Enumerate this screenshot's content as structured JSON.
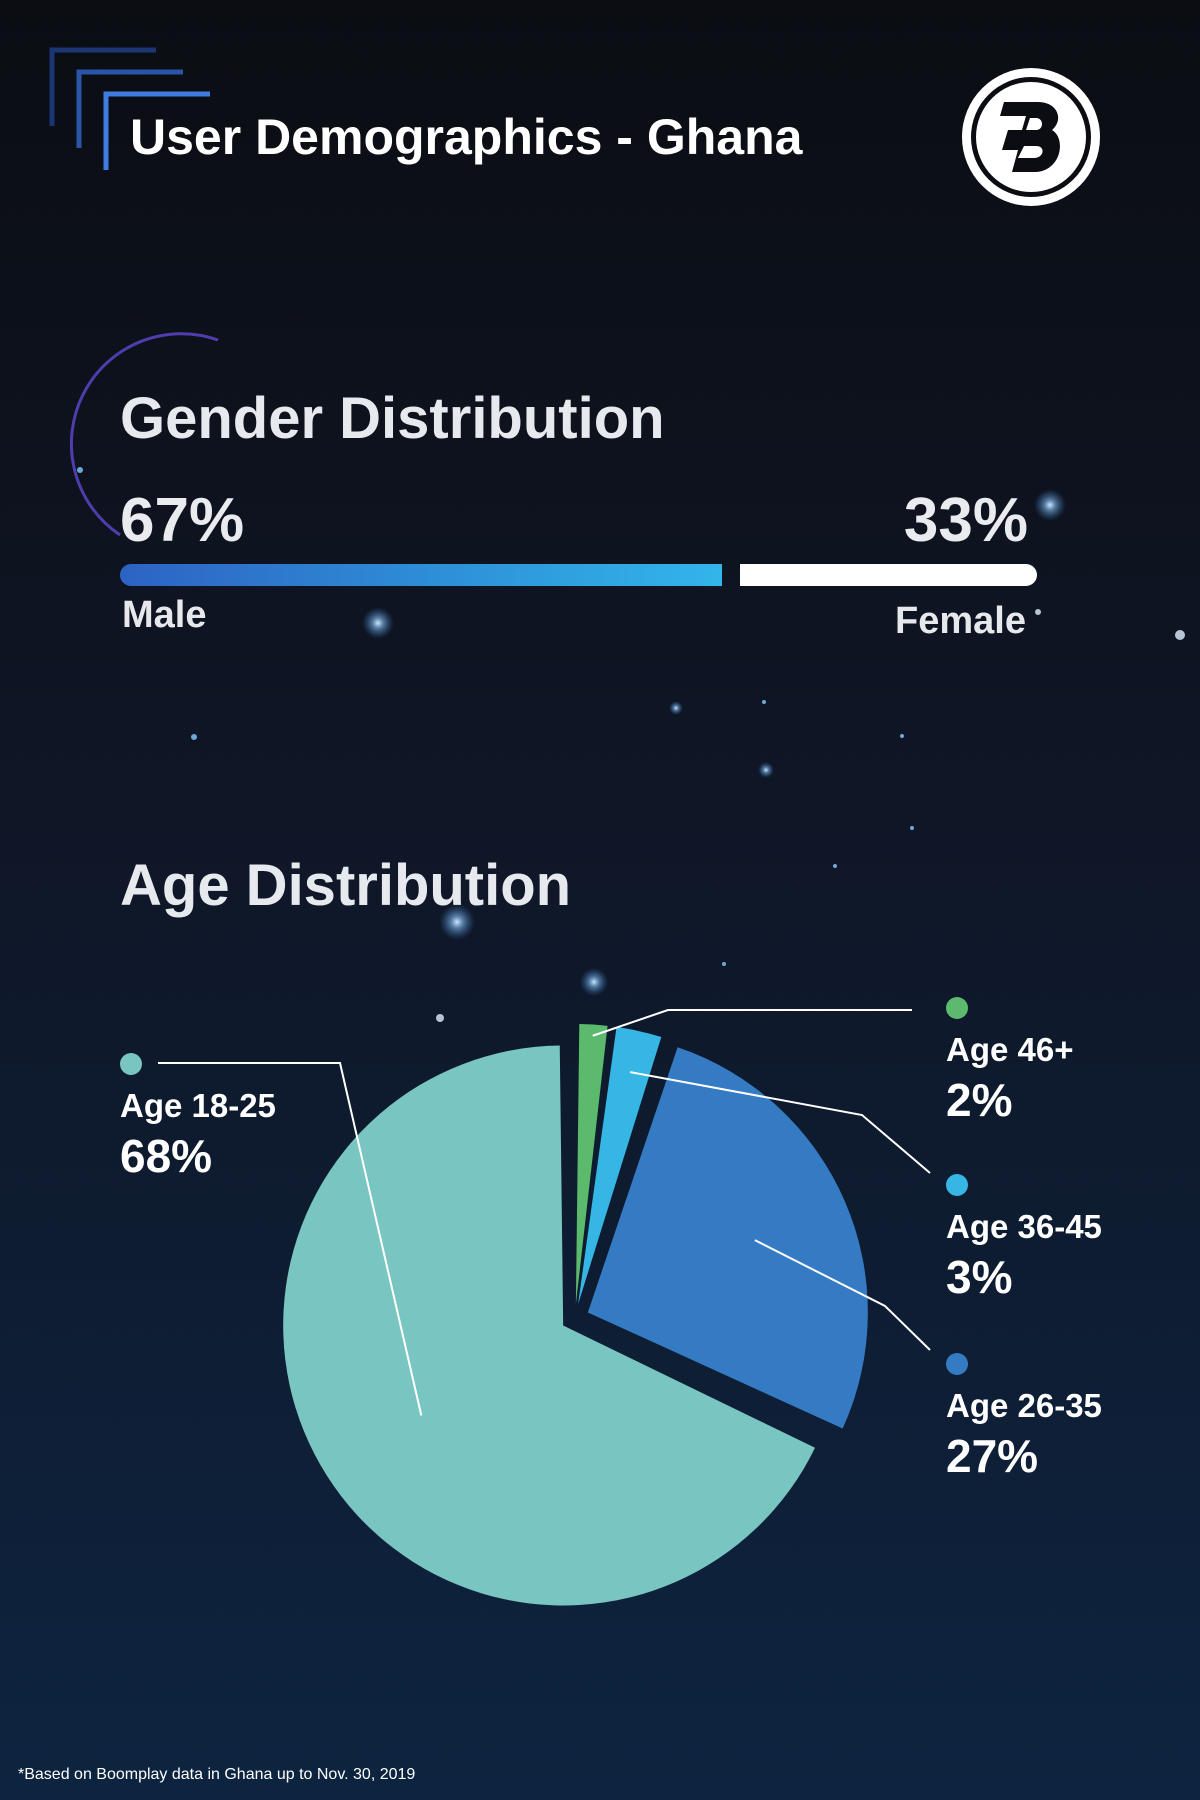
{
  "header": {
    "title": "User Demographics - Ghana"
  },
  "colors": {
    "male": "#2f8fdc",
    "female": "#ffffff",
    "age_18_25": "#78c5c1",
    "age_26_35": "#357bc4",
    "age_36_45": "#35b6e5",
    "age_46_plus": "#5cba6c"
  },
  "gender": {
    "title": "Gender Distribution",
    "male_pct": "67%",
    "male_label": "Male",
    "female_pct": "33%",
    "female_label": "Female"
  },
  "gender_chart": {
    "male": 67,
    "female": 33
  },
  "age": {
    "title": "Age Distribution"
  },
  "chart_data": {
    "type": "pie",
    "categories": [
      "Age 46+",
      "Age 36-45",
      "Age 26-35",
      "Age 18-25"
    ],
    "values": [
      2,
      3,
      27,
      68
    ],
    "value_labels": [
      "2%",
      "3%",
      "27%",
      "68%"
    ],
    "colors": [
      "#5cba6c",
      "#35b6e5",
      "#357bc4",
      "#78c5c1"
    ]
  },
  "footnote": "*Based on Boomplay data in Ghana up to Nov. 30, 2019",
  "logo": {
    "icon": "boomplay-logo-icon"
  }
}
